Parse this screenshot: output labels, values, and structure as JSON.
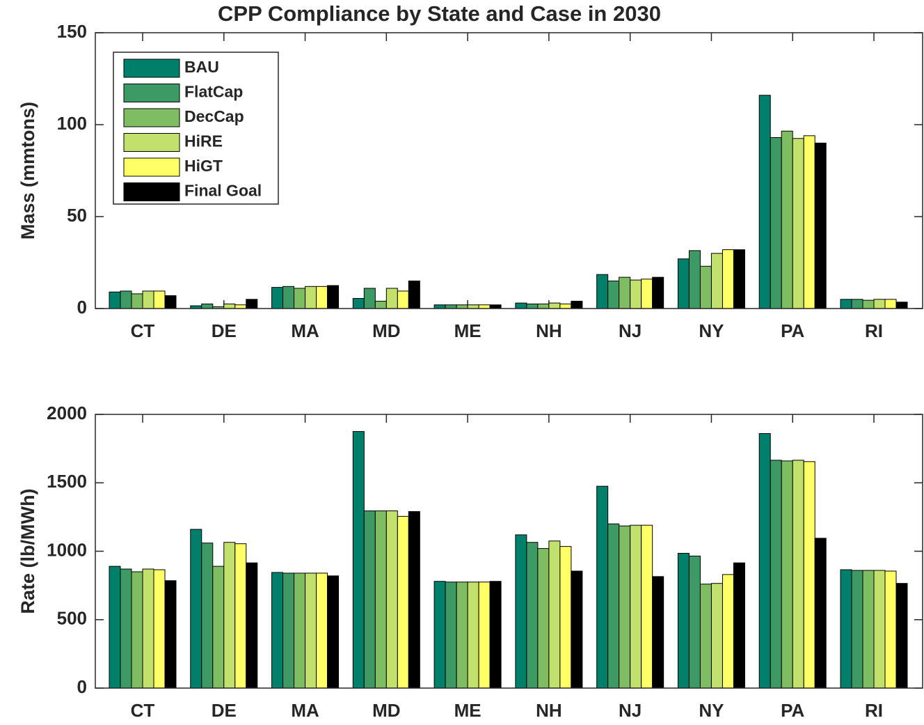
{
  "chart_data": [
    {
      "type": "bar",
      "title": "CPP Compliance by State and Case in 2030",
      "y_label": "Mass (mmtons)",
      "categories": [
        "CT",
        "DE",
        "MA",
        "MD",
        "ME",
        "NH",
        "NJ",
        "NY",
        "PA",
        "RI"
      ],
      "ylim": [
        0,
        150
      ],
      "yticks": [
        0,
        50,
        100,
        150
      ],
      "legend": "upper left",
      "series": [
        {
          "name": "BAU",
          "color": "#00806a",
          "values": [
            9,
            1.5,
            11.5,
            5.5,
            2,
            3,
            18.5,
            27,
            116,
            5
          ]
        },
        {
          "name": "FlatCap",
          "color": "#3e9a64",
          "values": [
            9.5,
            2.5,
            12,
            11,
            2,
            2.5,
            15,
            31.5,
            93,
            5
          ]
        },
        {
          "name": "DecCap",
          "color": "#7fbd62",
          "values": [
            8,
            1,
            11,
            4,
            2,
            2.5,
            17,
            23,
            96.5,
            4.5
          ]
        },
        {
          "name": "HiRE",
          "color": "#c2e06c",
          "values": [
            9.5,
            2.5,
            12,
            11,
            2,
            3,
            15.5,
            30,
            92.5,
            5
          ]
        },
        {
          "name": "HiGT",
          "color": "#ffff66",
          "values": [
            9.5,
            2,
            12,
            9.5,
            2,
            2.5,
            16,
            32,
            94,
            5
          ]
        },
        {
          "name": "Final Goal",
          "color": "#000000",
          "values": [
            7,
            5,
            12.5,
            15,
            2,
            4,
            17,
            32,
            90,
            3.5
          ]
        }
      ]
    },
    {
      "type": "bar",
      "y_label": "Rate (lb/MWh)",
      "categories": [
        "CT",
        "DE",
        "MA",
        "MD",
        "ME",
        "NH",
        "NJ",
        "NY",
        "PA",
        "RI"
      ],
      "ylim": [
        0,
        2000
      ],
      "yticks": [
        0,
        500,
        1000,
        1500,
        2000
      ],
      "series": [
        {
          "color": "#00806a",
          "values": [
            890,
            1160,
            845,
            1875,
            780,
            1120,
            1475,
            985,
            1860,
            865
          ]
        },
        {
          "color": "#3e9a64",
          "values": [
            870,
            1060,
            840,
            1295,
            775,
            1065,
            1200,
            965,
            1665,
            860
          ]
        },
        {
          "color": "#7fbd62",
          "values": [
            850,
            890,
            840,
            1295,
            775,
            1020,
            1185,
            760,
            1660,
            860
          ]
        },
        {
          "color": "#c2e06c",
          "values": [
            870,
            1065,
            840,
            1295,
            775,
            1075,
            1190,
            765,
            1665,
            860
          ]
        },
        {
          "color": "#ffff66",
          "values": [
            865,
            1055,
            840,
            1255,
            775,
            1035,
            1190,
            830,
            1655,
            855
          ]
        },
        {
          "color": "#000000",
          "values": [
            785,
            915,
            820,
            1290,
            780,
            855,
            815,
            915,
            1095,
            765
          ]
        }
      ]
    }
  ]
}
